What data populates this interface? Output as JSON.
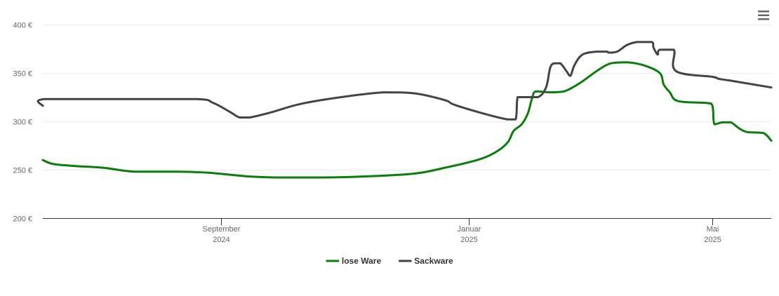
{
  "chart_data": {
    "type": "line",
    "title": "",
    "xlabel": "",
    "ylabel": "",
    "currency_suffix": " €",
    "ylim": [
      200,
      400
    ],
    "y_ticks": [
      200,
      250,
      300,
      350,
      400
    ],
    "y_tick_labels": [
      "200 €",
      "250 €",
      "300 €",
      "350 €",
      "400 €"
    ],
    "x_range": [
      "2024-06-05",
      "2025-05-30"
    ],
    "x_ticks": [
      {
        "date": "2024-09-01",
        "line1": "September",
        "line2": "2024"
      },
      {
        "date": "2025-01-01",
        "line1": "Januar",
        "line2": "2025"
      },
      {
        "date": "2025-05-01",
        "line1": "Mai",
        "line2": "2025"
      }
    ],
    "grid": true,
    "legend_position": "bottom-center",
    "series": [
      {
        "name": "lose Ware",
        "color": "#0a7d0a",
        "points": [
          [
            "2024-06-05",
            260
          ],
          [
            "2024-06-10",
            256
          ],
          [
            "2024-06-20",
            254
          ],
          [
            "2024-07-05",
            252
          ],
          [
            "2024-07-20",
            248
          ],
          [
            "2024-08-10",
            248
          ],
          [
            "2024-08-25",
            247
          ],
          [
            "2024-09-15",
            243
          ],
          [
            "2024-09-30",
            242
          ],
          [
            "2024-10-20",
            242
          ],
          [
            "2024-11-10",
            243
          ],
          [
            "2024-12-05",
            246
          ],
          [
            "2024-12-20",
            252
          ],
          [
            "2025-01-05",
            260
          ],
          [
            "2025-01-14",
            268
          ],
          [
            "2025-01-20",
            278
          ],
          [
            "2025-01-23",
            290
          ],
          [
            "2025-01-27",
            297
          ],
          [
            "2025-01-30",
            308
          ],
          [
            "2025-02-01",
            323
          ],
          [
            "2025-02-03",
            331
          ],
          [
            "2025-02-10",
            330
          ],
          [
            "2025-02-17",
            331
          ],
          [
            "2025-02-25",
            340
          ],
          [
            "2025-03-05",
            352
          ],
          [
            "2025-03-12",
            360
          ],
          [
            "2025-03-20",
            361
          ],
          [
            "2025-03-28",
            358
          ],
          [
            "2025-04-05",
            350
          ],
          [
            "2025-04-07",
            338
          ],
          [
            "2025-04-10",
            330
          ],
          [
            "2025-04-14",
            321
          ],
          [
            "2025-04-28",
            319
          ],
          [
            "2025-05-01",
            316
          ],
          [
            "2025-05-02",
            297
          ],
          [
            "2025-05-06",
            299
          ],
          [
            "2025-05-10",
            299
          ],
          [
            "2025-05-14",
            293
          ],
          [
            "2025-05-18",
            289
          ],
          [
            "2025-05-26",
            288
          ],
          [
            "2025-05-30",
            280
          ]
        ]
      },
      {
        "name": "Sackware",
        "color": "#444444",
        "points": [
          [
            "2024-06-05",
            316
          ],
          [
            "2024-06-06",
            323
          ],
          [
            "2024-07-15",
            323
          ],
          [
            "2024-08-20",
            323
          ],
          [
            "2024-08-28",
            319
          ],
          [
            "2024-09-05",
            310
          ],
          [
            "2024-09-10",
            304
          ],
          [
            "2024-09-15",
            304
          ],
          [
            "2024-09-25",
            309
          ],
          [
            "2024-10-10",
            318
          ],
          [
            "2024-10-30",
            325
          ],
          [
            "2024-11-20",
            330
          ],
          [
            "2024-12-05",
            329
          ],
          [
            "2024-12-20",
            322
          ],
          [
            "2024-12-25",
            317
          ],
          [
            "2025-01-10",
            307
          ],
          [
            "2025-01-20",
            302
          ],
          [
            "2025-01-24",
            302
          ],
          [
            "2025-01-25",
            325
          ],
          [
            "2025-01-28",
            325
          ],
          [
            "2025-02-04",
            325
          ],
          [
            "2025-02-08",
            335
          ],
          [
            "2025-02-10",
            355
          ],
          [
            "2025-02-12",
            360
          ],
          [
            "2025-02-15",
            360
          ],
          [
            "2025-02-18",
            352
          ],
          [
            "2025-02-20",
            347
          ],
          [
            "2025-02-22",
            358
          ],
          [
            "2025-02-26",
            369
          ],
          [
            "2025-03-05",
            372
          ],
          [
            "2025-03-10",
            372
          ],
          [
            "2025-03-11",
            371
          ],
          [
            "2025-03-15",
            372
          ],
          [
            "2025-03-20",
            379
          ],
          [
            "2025-03-25",
            382
          ],
          [
            "2025-04-01",
            382
          ],
          [
            "2025-04-02",
            376
          ],
          [
            "2025-04-04",
            369
          ],
          [
            "2025-04-05",
            374
          ],
          [
            "2025-04-12",
            374
          ],
          [
            "2025-04-13",
            352
          ],
          [
            "2025-05-01",
            346
          ],
          [
            "2025-05-04",
            344
          ],
          [
            "2025-05-10",
            342
          ],
          [
            "2025-05-30",
            335
          ]
        ]
      }
    ]
  }
}
